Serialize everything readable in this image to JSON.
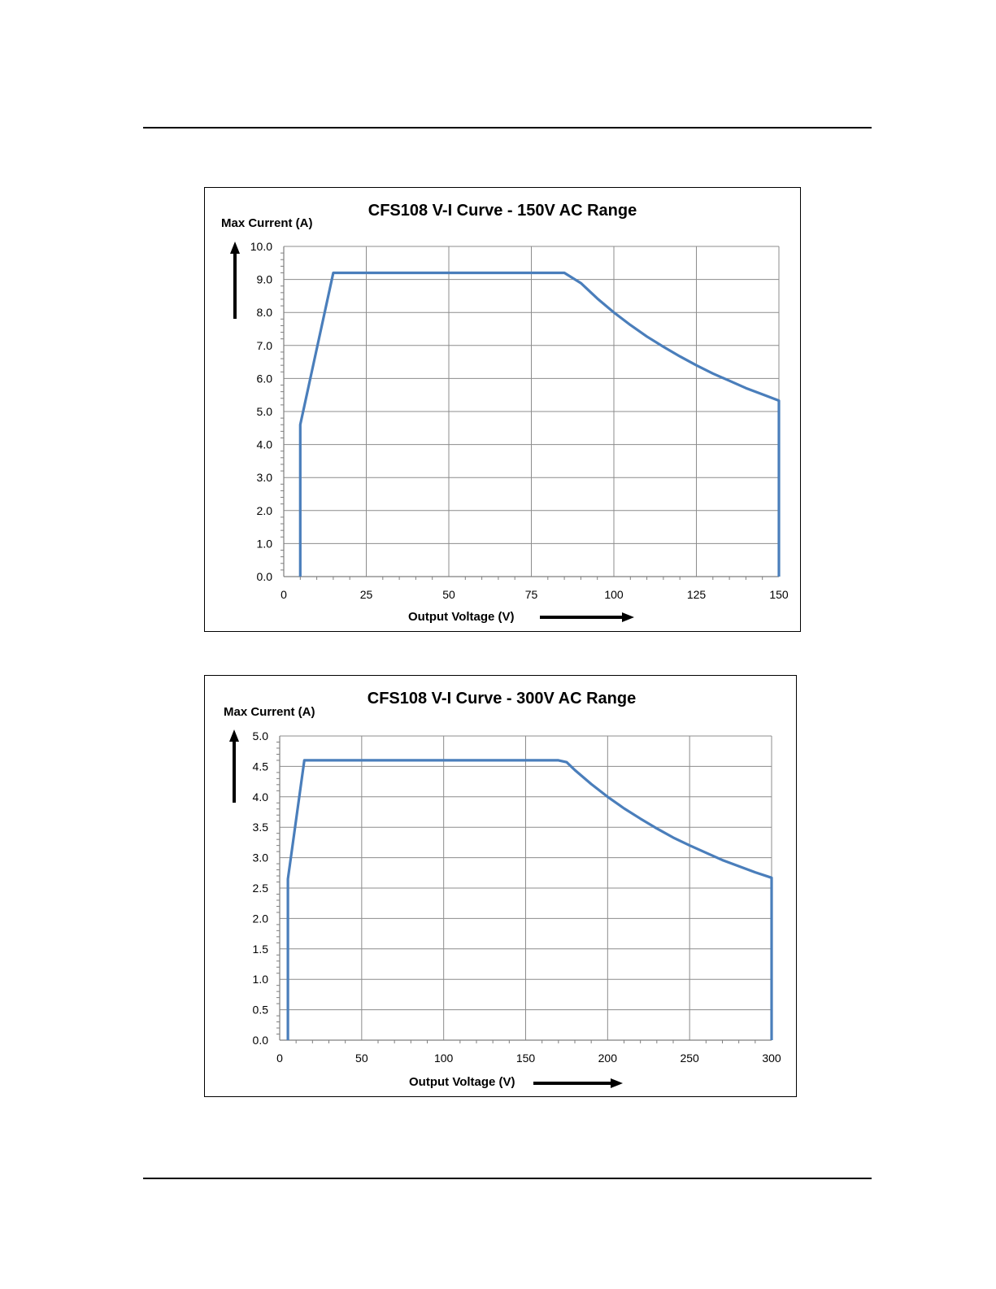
{
  "charts": [
    {
      "title": "CFS108 V-I Curve - 150V AC Range",
      "ylabel": "Max Current (A)",
      "xlabel": "Output Voltage (V)"
    },
    {
      "title": "CFS108 V-I Curve - 300V AC Range",
      "ylabel": "Max Current (A)",
      "xlabel": "Output Voltage (V)"
    }
  ],
  "colors": {
    "curve": "#4a7ebb",
    "grid": "#8c8c8c",
    "axis": "#7f7f7f"
  },
  "chart_data": [
    {
      "type": "line",
      "title": "CFS108 V-I Curve - 150V AC Range",
      "xlabel": "Output Voltage (V)",
      "ylabel": "Max Current (A)",
      "xlim": [
        0,
        150
      ],
      "ylim": [
        0,
        10
      ],
      "x_ticks": [
        0,
        25,
        50,
        75,
        100,
        125,
        150
      ],
      "y_ticks": [
        0,
        1,
        2,
        3,
        4,
        5,
        6,
        7,
        8,
        9,
        10
      ],
      "x_tick_labels": [
        "0",
        "25",
        "50",
        "75",
        "100",
        "125",
        "150"
      ],
      "y_tick_labels": [
        "0.0",
        "1.0",
        "2.0",
        "3.0",
        "4.0",
        "5.0",
        "6.0",
        "7.0",
        "8.0",
        "9.0",
        "10.0"
      ],
      "grid": true,
      "legend": "none",
      "series": [
        {
          "x": [
            5,
            5,
            15,
            85,
            90,
            95,
            100,
            105,
            110,
            115,
            120,
            125,
            130,
            135,
            140,
            145,
            150,
            150
          ],
          "y": [
            0,
            4.6,
            9.2,
            9.2,
            8.89,
            8.42,
            8.0,
            7.62,
            7.27,
            6.96,
            6.67,
            6.4,
            6.15,
            5.93,
            5.71,
            5.52,
            5.33,
            0
          ]
        }
      ]
    },
    {
      "type": "line",
      "title": "CFS108 V-I Curve - 300V AC Range",
      "xlabel": "Output Voltage (V)",
      "ylabel": "Max Current (A)",
      "xlim": [
        0,
        300
      ],
      "ylim": [
        0,
        5
      ],
      "x_ticks": [
        0,
        50,
        100,
        150,
        200,
        250,
        300
      ],
      "y_ticks": [
        0,
        0.5,
        1,
        1.5,
        2,
        2.5,
        3,
        3.5,
        4,
        4.5,
        5
      ],
      "x_tick_labels": [
        "0",
        "50",
        "100",
        "150",
        "200",
        "250",
        "300"
      ],
      "y_tick_labels": [
        "0.0",
        "0.5",
        "1.0",
        "1.5",
        "2.0",
        "2.5",
        "3.0",
        "3.5",
        "4.0",
        "4.5",
        "5.0"
      ],
      "grid": true,
      "legend": "none",
      "series": [
        {
          "x": [
            5,
            5,
            15,
            170,
            175,
            180,
            190,
            200,
            210,
            220,
            230,
            240,
            250,
            260,
            270,
            280,
            290,
            300,
            300
          ],
          "y": [
            0,
            2.65,
            4.6,
            4.6,
            4.57,
            4.44,
            4.21,
            4.0,
            3.81,
            3.64,
            3.48,
            3.33,
            3.2,
            3.08,
            2.96,
            2.86,
            2.76,
            2.67,
            0
          ]
        }
      ]
    }
  ]
}
